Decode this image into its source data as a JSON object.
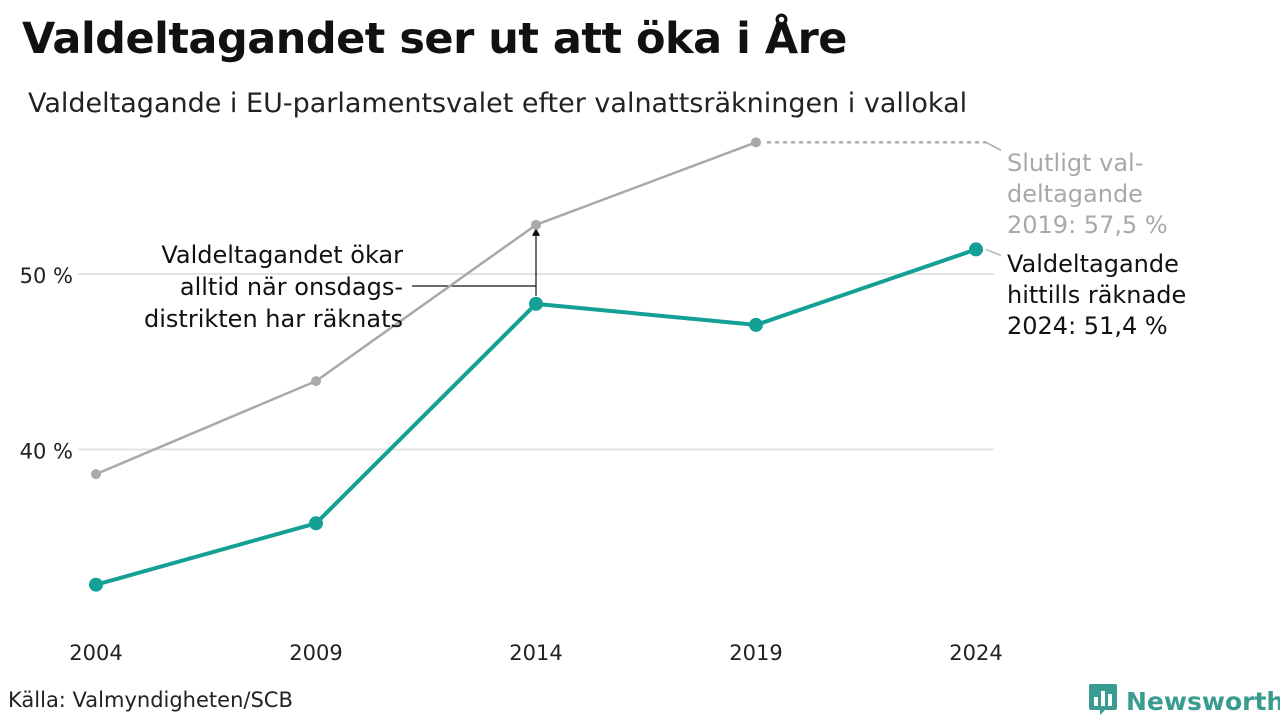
{
  "header": {
    "title": "Valdeltagandet ser ut att öka i Åre",
    "subtitle": "Valdeltagande i EU-parlamentsvalet efter valnattsräkningen i vallokal"
  },
  "footer": {
    "source": "Källa: Valmyndigheten/SCB",
    "brand": "Newsworthy"
  },
  "colors": {
    "current": "#14a095",
    "final": "#a9a9a9",
    "grid": "#e3e3e3",
    "text": "#111111"
  },
  "icons": {
    "brand_logo": "bar-chart-speech-bubble-icon"
  },
  "chart_data": {
    "type": "line",
    "x": [
      "2004",
      "2009",
      "2014",
      "2019",
      "2024"
    ],
    "y_ticks": [
      {
        "value": 40,
        "label": "40 %"
      },
      {
        "value": 50,
        "label": "50 %"
      }
    ],
    "ylim": [
      32,
      59
    ],
    "grid": true,
    "series": [
      {
        "key": "final",
        "values": [
          38.6,
          43.9,
          52.8,
          57.5,
          null
        ]
      },
      {
        "key": "current",
        "values": [
          32.3,
          35.8,
          48.3,
          47.1,
          51.4
        ]
      }
    ],
    "annotations": {
      "final_label": [
        "Slutligt val-",
        "deltagande",
        "2019: 57,5 %"
      ],
      "current_label": [
        "Valdeltagande",
        "hittills räknade",
        "2024: 51,4 %"
      ],
      "note": [
        "Valdeltagandet ökar",
        "alltid när onsdags-",
        "distrikten har räknats"
      ]
    }
  }
}
